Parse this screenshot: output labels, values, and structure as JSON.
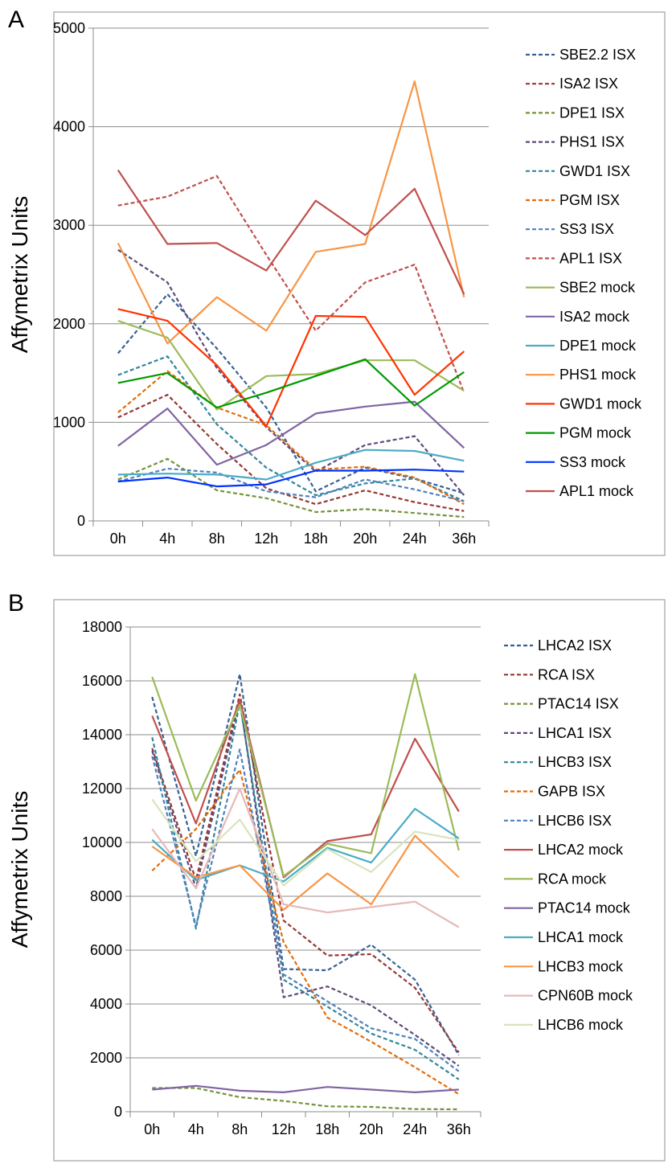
{
  "panels": {
    "a": "A",
    "b": "B"
  },
  "colors": {
    "SBE": "#376092",
    "ISA2": "#953735",
    "DPE1": "#76923c",
    "PHS1": "#5f497a",
    "GWD1": "#31859c",
    "PGM": "#e46c0a",
    "SS3": "#4f81bd",
    "APL1": "#c0504d",
    "SBE2mock": "#9bbb59",
    "ISA2mock": "#8064a2",
    "DPE1mock": "#4bacc6",
    "PHS1mock": "#f79646",
    "GWD1mock": "#ff3300",
    "PGMmock": "#009900",
    "SS3mock": "#0033ff",
    "APL1mock": "#c0504d",
    "CPN60Bmock": "#e6b9b8",
    "LHCB6mock": "#d7e4bd"
  },
  "chart_data": [
    {
      "type": "line",
      "ylabel": "Affymetrix Units",
      "ylim": [
        0,
        5000
      ],
      "yticks": [
        "0",
        "1000",
        "2000",
        "3000",
        "4000",
        "5000"
      ],
      "categories": [
        "0h",
        "4h",
        "8h",
        "12h",
        "18h",
        "20h",
        "24h",
        "36h"
      ],
      "legend": "right",
      "series": [
        {
          "name": "SBE2.2 ISX",
          "dash": true,
          "color": "#376092",
          "values": [
            1700,
            2300,
            1750,
            1150,
            300,
            540,
            430,
            280
          ]
        },
        {
          "name": "ISA2 ISX",
          "dash": true,
          "color": "#953735",
          "values": [
            1050,
            1280,
            780,
            330,
            170,
            310,
            190,
            100
          ]
        },
        {
          "name": "DPE1 ISX",
          "dash": true,
          "color": "#76923c",
          "values": [
            420,
            630,
            310,
            230,
            90,
            120,
            80,
            40
          ]
        },
        {
          "name": "PHS1 ISX",
          "dash": true,
          "color": "#5f497a",
          "values": [
            2750,
            2420,
            1550,
            950,
            500,
            770,
            860,
            260
          ]
        },
        {
          "name": "GWD1 ISX",
          "dash": true,
          "color": "#31859c",
          "values": [
            1480,
            1670,
            980,
            540,
            260,
            380,
            430,
            200
          ]
        },
        {
          "name": "PGM ISX",
          "dash": true,
          "color": "#e46c0a",
          "values": [
            1100,
            1520,
            1150,
            970,
            520,
            550,
            440,
            170
          ]
        },
        {
          "name": "SS3 ISX",
          "dash": true,
          "color": "#4f81bd",
          "values": [
            400,
            530,
            490,
            300,
            240,
            420,
            320,
            200
          ]
        },
        {
          "name": "APL1 ISX",
          "dash": true,
          "color": "#c0504d",
          "values": [
            3200,
            3290,
            3500,
            2700,
            1930,
            2420,
            2600,
            1300
          ]
        },
        {
          "name": "SBE2 mock",
          "dash": false,
          "color": "#9bbb59",
          "values": [
            2030,
            1860,
            1130,
            1470,
            1490,
            1630,
            1630,
            1320
          ]
        },
        {
          "name": "ISA2 mock",
          "dash": false,
          "color": "#8064a2",
          "values": [
            760,
            1140,
            570,
            770,
            1090,
            1160,
            1210,
            740
          ]
        },
        {
          "name": "DPE1 mock",
          "dash": false,
          "color": "#4bacc6",
          "values": [
            470,
            480,
            470,
            420,
            590,
            720,
            710,
            610
          ]
        },
        {
          "name": "PHS1 mock",
          "dash": false,
          "color": "#f79646",
          "values": [
            2820,
            1800,
            2270,
            1930,
            2730,
            2810,
            4460,
            2270
          ]
        },
        {
          "name": "GWD1 mock",
          "dash": false,
          "color": "#ff3300",
          "values": [
            2150,
            2030,
            1580,
            960,
            2080,
            2070,
            1280,
            1720
          ]
        },
        {
          "name": "PGM mock",
          "dash": false,
          "color": "#009900",
          "values": [
            1400,
            1500,
            1150,
            1300,
            1470,
            1640,
            1170,
            1510
          ]
        },
        {
          "name": "SS3 mock",
          "dash": false,
          "color": "#0033ff",
          "values": [
            400,
            440,
            350,
            370,
            510,
            510,
            520,
            500
          ]
        },
        {
          "name": "APL1 mock",
          "dash": false,
          "color": "#c0504d",
          "values": [
            3560,
            2810,
            2820,
            2540,
            3250,
            2900,
            3370,
            2300
          ]
        }
      ]
    },
    {
      "type": "line",
      "ylabel": "Affymetrix Units",
      "ylim": [
        0,
        18000
      ],
      "yticks": [
        "0",
        "2000",
        "4000",
        "6000",
        "8000",
        "10000",
        "12000",
        "14000",
        "16000",
        "18000"
      ],
      "categories": [
        "0h",
        "4h",
        "8h",
        "12h",
        "18h",
        "20h",
        "24h",
        "36h"
      ],
      "legend": "right",
      "series": [
        {
          "name": "LHCA2 ISX",
          "dash": true,
          "color": "#376092",
          "values": [
            15400,
            9500,
            16250,
            5300,
            5250,
            6200,
            4900,
            2100
          ]
        },
        {
          "name": "RCA ISX",
          "dash": true,
          "color": "#953735",
          "values": [
            13500,
            8600,
            15500,
            7100,
            5800,
            5850,
            4600,
            2200
          ]
        },
        {
          "name": "PTAC14 ISX",
          "dash": true,
          "color": "#76923c",
          "values": [
            880,
            880,
            540,
            400,
            200,
            180,
            100,
            90
          ]
        },
        {
          "name": "LHCA1 ISX",
          "dash": true,
          "color": "#5f497a",
          "values": [
            13400,
            8300,
            15300,
            4250,
            4650,
            3950,
            2850,
            1700
          ]
        },
        {
          "name": "LHCB3 ISX",
          "dash": true,
          "color": "#31859c",
          "values": [
            13900,
            6800,
            15200,
            4900,
            3900,
            2900,
            2300,
            1200
          ]
        },
        {
          "name": "GAPB ISX",
          "dash": true,
          "color": "#e46c0a",
          "values": [
            8950,
            10500,
            12700,
            6300,
            3500,
            2600,
            1650,
            650
          ]
        },
        {
          "name": "LHCB6 ISX",
          "dash": true,
          "color": "#4f81bd",
          "values": [
            13200,
            6900,
            13450,
            5100,
            4100,
            3100,
            2700,
            1500
          ]
        },
        {
          "name": "LHCA2 mock",
          "dash": false,
          "color": "#c0504d",
          "values": [
            14700,
            10700,
            15300,
            8700,
            10050,
            10300,
            13850,
            11150
          ]
        },
        {
          "name": "RCA mock",
          "dash": false,
          "color": "#9bbb59",
          "values": [
            16150,
            11550,
            15100,
            8750,
            9950,
            9600,
            16250,
            9700
          ]
        },
        {
          "name": "PTAC14 mock",
          "dash": false,
          "color": "#8064a2",
          "values": [
            820,
            960,
            780,
            720,
            920,
            820,
            720,
            820
          ]
        },
        {
          "name": "LHCA1 mock",
          "dash": false,
          "color": "#4bacc6",
          "values": [
            10100,
            8600,
            9150,
            8550,
            9800,
            9250,
            11250,
            10150
          ]
        },
        {
          "name": "LHCB3 mock",
          "dash": false,
          "color": "#f79646",
          "values": [
            9850,
            8700,
            9150,
            7500,
            8850,
            7700,
            10250,
            8700
          ]
        },
        {
          "name": "CPN60B mock",
          "dash": false,
          "color": "#e6b9b8",
          "values": [
            10500,
            8300,
            12000,
            7700,
            7400,
            7600,
            7800,
            6850
          ]
        },
        {
          "name": "LHCB6 mock",
          "dash": false,
          "color": "#d7e4bd",
          "values": [
            11600,
            9300,
            10850,
            8400,
            9750,
            8900,
            10400,
            10100
          ]
        }
      ]
    }
  ]
}
